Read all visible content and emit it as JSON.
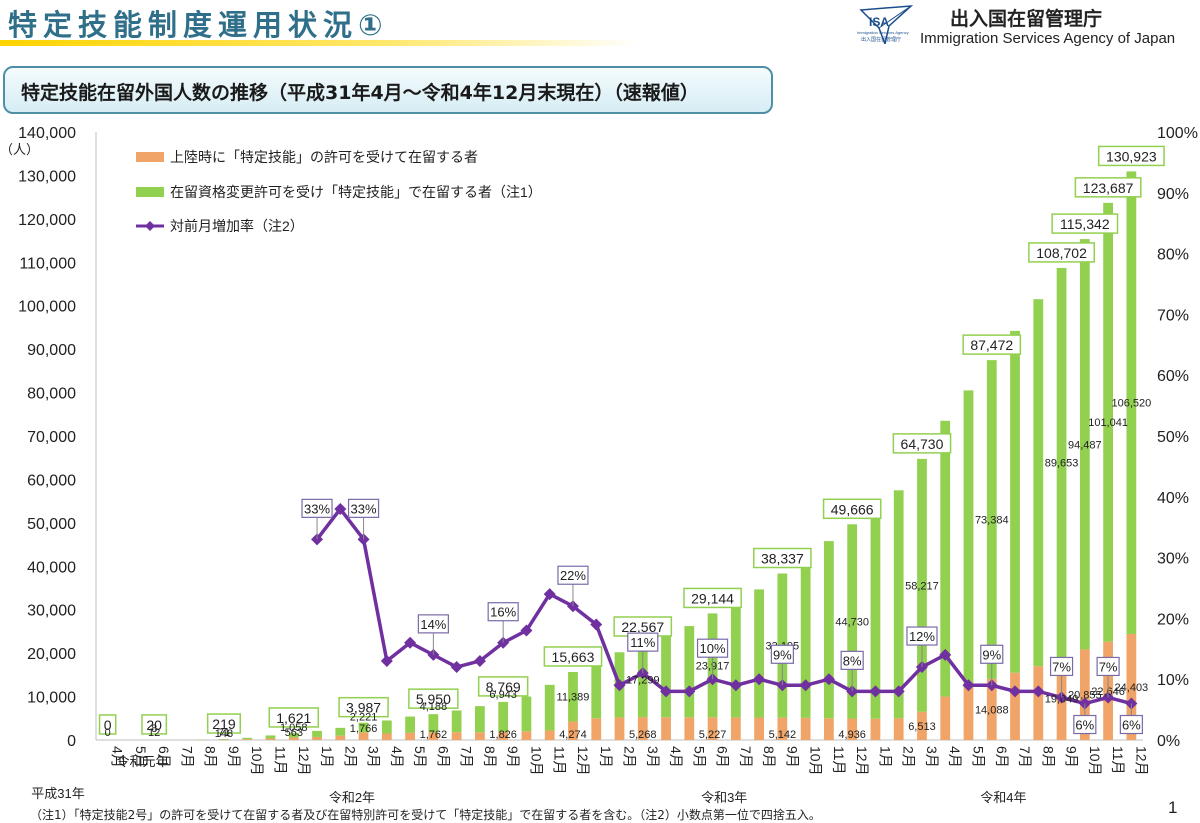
{
  "header": {
    "title": "特定技能制度運用状況①",
    "agency_jp": "出入国在留管理庁",
    "agency_en": "Immigration Services Agency of Japan",
    "logo_text": "ISA",
    "logo_sub_en": "Immigration Services Agency",
    "logo_sub_jp": "出入国在留管理庁"
  },
  "subtitle": "特定技能在留外国人数の推移（平成31年4月～令和4年12月末現在）（速報値）",
  "footnote": "（注1）「特定技能2号」の許可を受けて在留する者及び在留特別許可を受けて「特定技能」で在留する者を含む。（注2）小数点第一位で四捨五入。",
  "page_number": "1",
  "colors": {
    "landing": "#f0a468",
    "status_change": "#92d050",
    "rate_line": "#7030a0",
    "title": "#2f6f8a"
  },
  "chart_data": {
    "type": "bar",
    "stacked": true,
    "y_unit": "（人）",
    "ylim": [
      0,
      140000
    ],
    "y_ticks": [
      "0",
      "10,000",
      "20,000",
      "30,000",
      "40,000",
      "50,000",
      "60,000",
      "70,000",
      "80,000",
      "90,000",
      "100,000",
      "110,000",
      "120,000",
      "130,000",
      "140,000"
    ],
    "y2lim": [
      0,
      100
    ],
    "y2_ticks": [
      "0%",
      "10%",
      "20%",
      "30%",
      "40%",
      "50%",
      "60%",
      "70%",
      "80%",
      "90%",
      "100%"
    ],
    "legend_position": "top-left",
    "categories": [
      "4月",
      "5月",
      "6月",
      "7月",
      "8月",
      "9月",
      "10月",
      "11月",
      "12月",
      "1月",
      "2月",
      "3月",
      "4月",
      "5月",
      "6月",
      "7月",
      "8月",
      "9月",
      "10月",
      "11月",
      "12月",
      "1月",
      "2月",
      "3月",
      "4月",
      "5月",
      "6月",
      "7月",
      "8月",
      "9月",
      "10月",
      "11月",
      "12月",
      "1月",
      "2月",
      "3月",
      "4月",
      "5月",
      "6月",
      "7月",
      "8月",
      "9月",
      "10月",
      "11月",
      "12月"
    ],
    "era_labels": [
      {
        "text": "平成31年",
        "index": 0
      },
      {
        "text": "令和元年",
        "index": 1.5
      },
      {
        "text": "令和2年",
        "index": 10.5
      },
      {
        "text": "令和3年",
        "index": 26.5
      },
      {
        "text": "令和4年",
        "index": 38.5
      }
    ],
    "series": [
      {
        "name": "上陸時に「特定技能」の許可を受けて在留する者",
        "kind": "bar",
        "values": [
          0,
          8,
          12,
          30,
          50,
          71,
          200,
          350,
          563,
          700,
          1000,
          1766,
          1500,
          1700,
          1762,
          1800,
          1800,
          1826,
          2000,
          2200,
          4274,
          5000,
          5200,
          5268,
          5250,
          5230,
          5227,
          5200,
          5170,
          5142,
          5100,
          5000,
          4936,
          4900,
          5000,
          6513,
          10000,
          12000,
          14088,
          15500,
          17000,
          19049,
          20855,
          22646,
          24403
        ]
      },
      {
        "name": "在留資格変更許可を受け「特定技能」で在留する者（注1）",
        "kind": "bar",
        "values": [
          0,
          12,
          8,
          20,
          60,
          148,
          300,
          700,
          1058,
          1400,
          1800,
          2221,
          3000,
          3700,
          4188,
          5000,
          6000,
          6943,
          8000,
          10500,
          11389,
          14000,
          15000,
          17299,
          19000,
          21000,
          23917,
          26500,
          29500,
          33195,
          36800,
          40800,
          44730,
          48700,
          52500,
          58217,
          63500,
          68500,
          73384,
          78700,
          84500,
          89653,
          94487,
          101041,
          106520
        ]
      },
      {
        "name": "対前月増加率（注2）",
        "kind": "line",
        "unit": "%",
        "values": [
          null,
          null,
          null,
          null,
          null,
          null,
          null,
          null,
          null,
          33,
          38,
          33,
          13,
          16,
          14,
          12,
          13,
          16,
          18,
          24,
          22,
          19,
          9,
          11,
          8,
          8,
          10,
          9,
          10,
          9,
          9,
          10,
          8,
          8,
          8,
          12,
          14,
          9,
          9,
          8,
          8,
          7,
          6,
          7,
          6
        ]
      }
    ],
    "totals": [
      0,
      20,
      20,
      50,
      110,
      219,
      500,
      1050,
      1621,
      2100,
      2800,
      3987,
      4500,
      5400,
      5950,
      6800,
      7800,
      8769,
      10000,
      12700,
      15663,
      19000,
      20200,
      22567,
      24250,
      26230,
      29144,
      31700,
      34670,
      38337,
      41900,
      45800,
      49666,
      53600,
      57500,
      64730,
      73500,
      80500,
      87472,
      94200,
      101500,
      108702,
      115342,
      123687,
      130923
    ],
    "total_labels": [
      {
        "index": 0,
        "text": "0"
      },
      {
        "index": 2,
        "text": "20"
      },
      {
        "index": 5,
        "text": "219"
      },
      {
        "index": 8,
        "text": "1,621"
      },
      {
        "index": 11,
        "text": "3,987"
      },
      {
        "index": 14,
        "text": "5,950"
      },
      {
        "index": 17,
        "text": "8,769"
      },
      {
        "index": 20,
        "text": "15,663"
      },
      {
        "index": 23,
        "text": "22,567"
      },
      {
        "index": 26,
        "text": "29,144"
      },
      {
        "index": 29,
        "text": "38,337"
      },
      {
        "index": 32,
        "text": "49,666"
      },
      {
        "index": 35,
        "text": "64,730"
      },
      {
        "index": 38,
        "text": "87,472"
      },
      {
        "index": 41,
        "text": "108,702"
      },
      {
        "index": 42,
        "text": "115,342"
      },
      {
        "index": 43,
        "text": "123,687"
      },
      {
        "index": 44,
        "text": "130,923"
      }
    ],
    "green_labels": [
      {
        "index": 2,
        "text": "8"
      },
      {
        "index": 5,
        "text": "148"
      },
      {
        "index": 8,
        "text": "1,058"
      },
      {
        "index": 11,
        "text": "2,221"
      },
      {
        "index": 14,
        "text": "4,188"
      },
      {
        "index": 17,
        "text": "6,943"
      },
      {
        "index": 20,
        "text": "11,389"
      },
      {
        "index": 23,
        "text": "17,299"
      },
      {
        "index": 26,
        "text": "23,917"
      },
      {
        "index": 29,
        "text": "33,195"
      },
      {
        "index": 32,
        "text": "44,730"
      },
      {
        "index": 35,
        "text": "58,217"
      },
      {
        "index": 38,
        "text": "73,384"
      },
      {
        "index": 41,
        "text": "89,653"
      },
      {
        "index": 42,
        "text": "94,487"
      },
      {
        "index": 43,
        "text": "101,041"
      },
      {
        "index": 44,
        "text": "106,520"
      }
    ],
    "orange_labels": [
      {
        "index": 0,
        "text": "0"
      },
      {
        "index": 2,
        "text": "12"
      },
      {
        "index": 5,
        "text": "71"
      },
      {
        "index": 8,
        "text": "563"
      },
      {
        "index": 11,
        "text": "1,766"
      },
      {
        "index": 14,
        "text": "1,762"
      },
      {
        "index": 17,
        "text": "1,826"
      },
      {
        "index": 20,
        "text": "4,274"
      },
      {
        "index": 23,
        "text": "5,268"
      },
      {
        "index": 26,
        "text": "5,227"
      },
      {
        "index": 29,
        "text": "5,142"
      },
      {
        "index": 32,
        "text": "4,936"
      },
      {
        "index": 35,
        "text": "6,513"
      },
      {
        "index": 38,
        "text": "14,088"
      },
      {
        "index": 41,
        "text": "19,049"
      },
      {
        "index": 42,
        "text": "20,855"
      },
      {
        "index": 43,
        "text": "22,646"
      },
      {
        "index": 44,
        "text": "24,403"
      }
    ],
    "rate_labels": [
      {
        "index": 9,
        "text": "33%"
      },
      {
        "index": 11,
        "text": "33%"
      },
      {
        "index": 14,
        "text": "14%"
      },
      {
        "index": 17,
        "text": "16%"
      },
      {
        "index": 20,
        "text": "22%"
      },
      {
        "index": 23,
        "text": "11%"
      },
      {
        "index": 26,
        "text": "10%"
      },
      {
        "index": 29,
        "text": "9%"
      },
      {
        "index": 32,
        "text": "8%"
      },
      {
        "index": 35,
        "text": "12%"
      },
      {
        "index": 38,
        "text": "9%"
      },
      {
        "index": 41,
        "text": "7%"
      },
      {
        "index": 42,
        "text": "6%"
      },
      {
        "index": 43,
        "text": "7%"
      },
      {
        "index": 44,
        "text": "6%"
      }
    ]
  }
}
